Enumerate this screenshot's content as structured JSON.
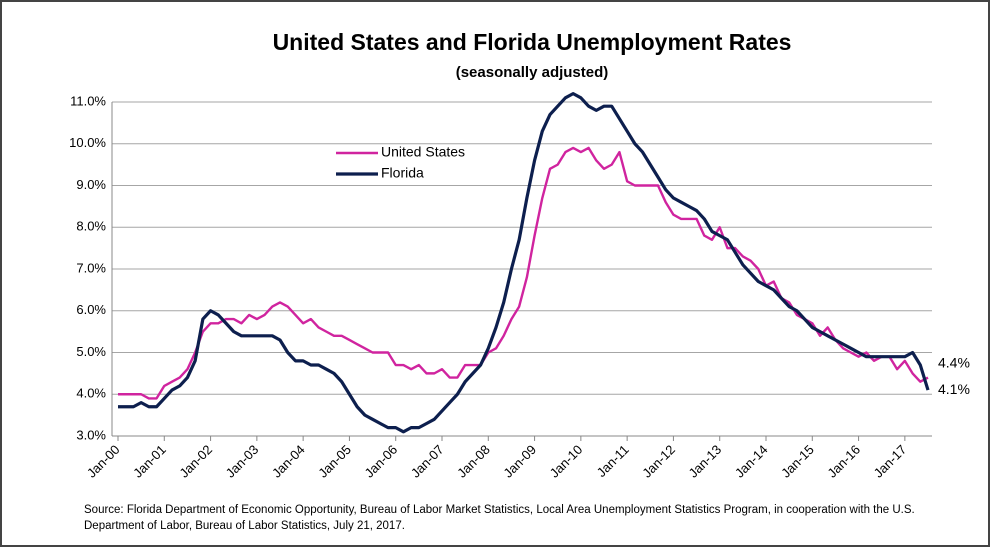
{
  "chart_data": {
    "type": "line",
    "title": "United States and Florida Unemployment Rates",
    "subtitle": "(seasonally adjusted)",
    "source": "Source:  Florida Department of Economic Opportunity, Bureau of Labor Market Statistics, Local Area Unemployment Statistics Program, in cooperation with the U.S. Department of Labor, Bureau of Labor Statistics, July 21, 2017.",
    "categories": [
      "Jan-00",
      null,
      null,
      null,
      null,
      null,
      "Jan-01",
      null,
      null,
      null,
      null,
      null,
      "Jan-02",
      null,
      null,
      null,
      null,
      null,
      "Jan-03",
      null,
      null,
      null,
      null,
      null,
      "Jan-04",
      null,
      null,
      null,
      null,
      null,
      "Jan-05",
      null,
      null,
      null,
      null,
      null,
      "Jan-06",
      null,
      null,
      null,
      null,
      null,
      "Jan-07",
      null,
      null,
      null,
      null,
      null,
      "Jan-08",
      null,
      null,
      null,
      null,
      null,
      "Jan-09",
      null,
      null,
      null,
      null,
      null,
      "Jan-10",
      null,
      null,
      null,
      null,
      null,
      "Jan-11",
      null,
      null,
      null,
      null,
      null,
      "Jan-12",
      null,
      null,
      null,
      null,
      null,
      "Jan-13",
      null,
      null,
      null,
      null,
      null,
      "Jan-14",
      null,
      null,
      null,
      null,
      null,
      "Jan-15",
      null,
      null,
      null,
      null,
      null,
      "Jan-16",
      null,
      null,
      null,
      null,
      null,
      "Jan-17",
      null,
      null,
      null
    ],
    "series": [
      {
        "name": "United States",
        "color": "#d0249f",
        "end_label": "4.4%",
        "values": [
          4.0,
          4.0,
          4.0,
          4.0,
          3.9,
          3.9,
          4.2,
          4.3,
          4.4,
          4.6,
          5.0,
          5.5,
          5.7,
          5.7,
          5.8,
          5.8,
          5.7,
          5.9,
          5.8,
          5.9,
          6.1,
          6.2,
          6.1,
          5.9,
          5.7,
          5.8,
          5.6,
          5.5,
          5.4,
          5.4,
          5.3,
          5.2,
          5.1,
          5.0,
          5.0,
          5.0,
          4.7,
          4.7,
          4.6,
          4.7,
          4.5,
          4.5,
          4.6,
          4.4,
          4.4,
          4.7,
          4.7,
          4.7,
          5.0,
          5.1,
          5.4,
          5.8,
          6.1,
          6.8,
          7.8,
          8.7,
          9.4,
          9.5,
          9.8,
          9.9,
          9.8,
          9.9,
          9.6,
          9.4,
          9.5,
          9.8,
          9.1,
          9.0,
          9.0,
          9.0,
          9.0,
          8.6,
          8.3,
          8.2,
          8.2,
          8.2,
          7.8,
          7.7,
          8.0,
          7.5,
          7.5,
          7.3,
          7.2,
          7.0,
          6.6,
          6.7,
          6.3,
          6.2,
          5.9,
          5.8,
          5.7,
          5.4,
          5.6,
          5.3,
          5.1,
          5.0,
          4.9,
          5.0,
          4.8,
          4.9,
          4.9,
          4.6,
          4.8,
          4.5,
          4.3,
          4.4
        ]
      },
      {
        "name": "Florida",
        "color": "#0d1f4e",
        "end_label": "4.1%",
        "values": [
          3.7,
          3.7,
          3.7,
          3.8,
          3.7,
          3.7,
          3.9,
          4.1,
          4.2,
          4.4,
          4.8,
          5.8,
          6.0,
          5.9,
          5.7,
          5.5,
          5.4,
          5.4,
          5.4,
          5.4,
          5.4,
          5.3,
          5.0,
          4.8,
          4.8,
          4.7,
          4.7,
          4.6,
          4.5,
          4.3,
          4.0,
          3.7,
          3.5,
          3.4,
          3.3,
          3.2,
          3.2,
          3.1,
          3.2,
          3.2,
          3.3,
          3.4,
          3.6,
          3.8,
          4.0,
          4.3,
          4.5,
          4.7,
          5.1,
          5.6,
          6.2,
          7.0,
          7.7,
          8.7,
          9.6,
          10.3,
          10.7,
          10.9,
          11.1,
          11.2,
          11.1,
          10.9,
          10.8,
          10.9,
          10.9,
          10.6,
          10.3,
          10.0,
          9.8,
          9.5,
          9.2,
          8.9,
          8.7,
          8.6,
          8.5,
          8.4,
          8.2,
          7.9,
          7.8,
          7.7,
          7.4,
          7.1,
          6.9,
          6.7,
          6.6,
          6.5,
          6.3,
          6.1,
          6.0,
          5.8,
          5.6,
          5.5,
          5.4,
          5.3,
          5.2,
          5.1,
          5.0,
          4.9,
          4.9,
          4.9,
          4.9,
          4.9,
          4.9,
          5.0,
          4.7,
          4.1
        ]
      }
    ],
    "ylim": [
      3,
      11
    ],
    "yticks": [
      {
        "value": 3,
        "label": "3.0%"
      },
      {
        "value": 4,
        "label": "4.0%"
      },
      {
        "value": 5,
        "label": "5.0%"
      },
      {
        "value": 6,
        "label": "6.0%"
      },
      {
        "value": 7,
        "label": "7.0%"
      },
      {
        "value": 8,
        "label": "8.0%"
      },
      {
        "value": 9,
        "label": "9.0%"
      },
      {
        "value": 10,
        "label": "10.0%"
      },
      {
        "value": 11,
        "label": "11.0%"
      }
    ],
    "grid": true
  }
}
